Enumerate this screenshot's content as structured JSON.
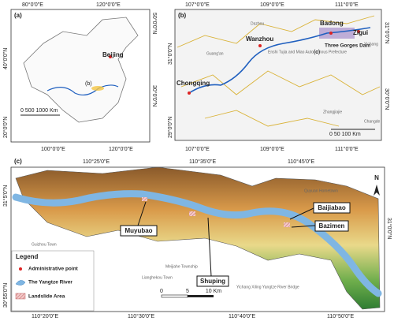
{
  "panel_a": {
    "label": "(a)",
    "lon_top": [
      "80°0'0\"E",
      "120°0'0\"E"
    ],
    "lon_bottom": [
      "100°0'0\"E",
      "120°0'0\"E"
    ],
    "lat_left": [
      "40°0'0\"N",
      "20°0'0\"N"
    ],
    "lat_right": [
      "50°0'0\"N",
      "30°0'0\"N"
    ],
    "capital": "Beijing",
    "inset": "(b)",
    "scale": "0  500 1000 Km"
  },
  "panel_b": {
    "label": "(b)",
    "lon_top": [
      "107°0'0\"E",
      "109°0'0\"E",
      "111°0'0\"E"
    ],
    "lon_bottom": [
      "107°0'0\"E",
      "109°0'0\"E",
      "111°0'0\"E"
    ],
    "lat_left": [
      "31°0'0\"N",
      "29°0'0\"N"
    ],
    "lat_right": [
      "31°0'0\"N",
      "30°0'0\"N"
    ],
    "places": {
      "wanzhou": "Wanzhou",
      "badong": "Badong",
      "zigui": "Zigui",
      "chongqing": "Chongqing",
      "dam": "Three Gorges Dam",
      "enshi": "Enshi Tujia and Miao Autonomous Prefecture"
    },
    "minor_places": [
      "Dazhou",
      "Guang'an",
      "Yichang",
      "Zhangjiajie",
      "Changde"
    ],
    "inset": "(c)",
    "scale": "0   50  100 Km"
  },
  "panel_c": {
    "label": "(c)",
    "lon_top": [
      "110°25'0\"E",
      "110°35'0\"E",
      "110°45'0\"E"
    ],
    "lon_bottom": [
      "110°20'0\"E",
      "110°30'0\"E",
      "110°40'0\"E",
      "110°50'0\"E"
    ],
    "lat_left": [
      "31°5'0\"N",
      "30°55'0\"N"
    ],
    "lat_right": [
      "31°0'0\"N"
    ],
    "sites": {
      "muyubao": "Muyubao",
      "shuping": "Shuping",
      "baijiabao": "Baijiabao",
      "bazimen": "Bazimen"
    },
    "minor_places": [
      "Quyuan Hometown",
      "Meijiahe Township",
      "Guizhou Town",
      "Lianghekou Town",
      "Yichang Xiling Yangtze River Bridge"
    ],
    "north": "N",
    "legend": {
      "title": "Legend",
      "items": [
        "Administrative point",
        "The Yangtze River",
        "Landslide Area"
      ]
    },
    "scale": [
      "0",
      "5",
      "10 Km"
    ]
  }
}
